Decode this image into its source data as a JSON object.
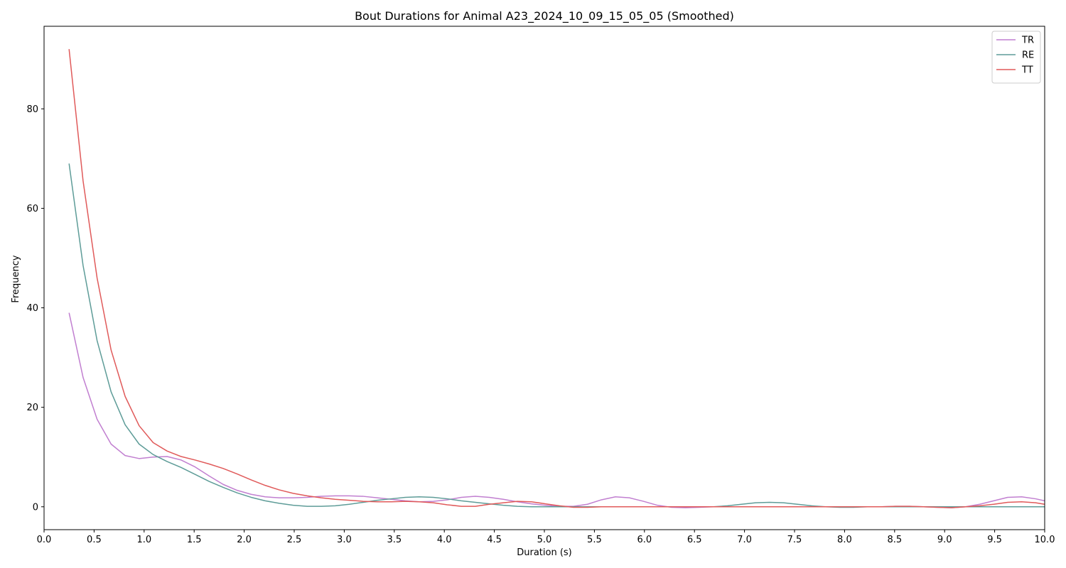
{
  "chart_data": {
    "type": "line",
    "title": "Bout Durations for Animal A23_2024_10_09_15_05_05 (Smoothed)",
    "xlabel": "Duration (s)",
    "ylabel": "Frequency",
    "xlim": [
      0,
      10
    ],
    "ylim": [
      -4.6,
      96.6
    ],
    "xticks": [
      0.0,
      0.5,
      1.0,
      1.5,
      2.0,
      2.5,
      3.0,
      3.5,
      4.0,
      4.5,
      5.0,
      5.5,
      6.0,
      6.5,
      7.0,
      7.5,
      8.0,
      8.5,
      9.0,
      9.5,
      10.0
    ],
    "xtick_labels": [
      "0.0",
      "0.5",
      "1.0",
      "1.5",
      "2.0",
      "2.5",
      "3.0",
      "3.5",
      "4.0",
      "4.5",
      "5.0",
      "5.5",
      "6.0",
      "6.5",
      "7.0",
      "7.5",
      "8.0",
      "8.5",
      "9.0",
      "9.5",
      "10.0"
    ],
    "yticks": [
      0,
      20,
      40,
      60,
      80
    ],
    "ytick_labels": [
      "0",
      "20",
      "40",
      "60",
      "80"
    ],
    "grid": false,
    "legend_position": "top-right",
    "series": [
      {
        "name": "TR",
        "color": "#c17fd0",
        "points": [
          [
            0.25,
            39
          ],
          [
            0.39,
            26
          ],
          [
            0.53,
            17.6
          ],
          [
            0.67,
            12.6
          ],
          [
            0.81,
            10.3
          ],
          [
            0.95,
            9.7
          ],
          [
            1.09,
            10
          ],
          [
            1.23,
            10.1
          ],
          [
            1.37,
            9.4
          ],
          [
            1.51,
            8
          ],
          [
            1.65,
            6.2
          ],
          [
            1.79,
            4.5
          ],
          [
            1.93,
            3.3
          ],
          [
            2.07,
            2.5
          ],
          [
            2.21,
            2
          ],
          [
            2.35,
            1.8
          ],
          [
            2.49,
            1.8
          ],
          [
            2.63,
            1.9
          ],
          [
            2.77,
            2.1
          ],
          [
            2.91,
            2.2
          ],
          [
            3.05,
            2.2
          ],
          [
            3.19,
            2.1
          ],
          [
            3.33,
            1.8
          ],
          [
            3.47,
            1.5
          ],
          [
            3.61,
            1.2
          ],
          [
            3.75,
            1
          ],
          [
            3.89,
            1.1
          ],
          [
            4.03,
            1.4
          ],
          [
            4.17,
            1.9
          ],
          [
            4.31,
            2.1
          ],
          [
            4.45,
            1.9
          ],
          [
            4.59,
            1.5
          ],
          [
            4.73,
            1
          ],
          [
            4.87,
            0.6
          ],
          [
            5.01,
            0.3
          ],
          [
            5.15,
            0.1
          ],
          [
            5.29,
            0.1
          ],
          [
            5.43,
            0.5
          ],
          [
            5.57,
            1.4
          ],
          [
            5.71,
            2
          ],
          [
            5.85,
            1.8
          ],
          [
            5.99,
            1.1
          ],
          [
            6.13,
            0.3
          ],
          [
            6.27,
            -0.1
          ],
          [
            6.41,
            -0.2
          ],
          [
            6.55,
            -0.1
          ],
          [
            6.69,
            0
          ],
          [
            6.83,
            0
          ],
          [
            6.97,
            0
          ],
          [
            7.11,
            0
          ],
          [
            7.25,
            0
          ],
          [
            7.39,
            0
          ],
          [
            7.53,
            0
          ],
          [
            7.67,
            0
          ],
          [
            7.81,
            0
          ],
          [
            7.95,
            0
          ],
          [
            8.09,
            0
          ],
          [
            8.23,
            0
          ],
          [
            8.37,
            0
          ],
          [
            8.51,
            0.1
          ],
          [
            8.65,
            0.1
          ],
          [
            8.79,
            0
          ],
          [
            8.93,
            -0.1
          ],
          [
            9.07,
            -0.2
          ],
          [
            9.21,
            0
          ],
          [
            9.35,
            0.5
          ],
          [
            9.49,
            1.2
          ],
          [
            9.63,
            1.9
          ],
          [
            9.77,
            2
          ],
          [
            9.91,
            1.6
          ],
          [
            10,
            1.2
          ]
        ]
      },
      {
        "name": "RE",
        "color": "#5e9c98",
        "points": [
          [
            0.25,
            69
          ],
          [
            0.39,
            48.5
          ],
          [
            0.53,
            33.4
          ],
          [
            0.67,
            23.1
          ],
          [
            0.81,
            16.5
          ],
          [
            0.95,
            12.6
          ],
          [
            1.09,
            10.5
          ],
          [
            1.23,
            9.1
          ],
          [
            1.37,
            7.9
          ],
          [
            1.51,
            6.5
          ],
          [
            1.65,
            5.1
          ],
          [
            1.79,
            3.9
          ],
          [
            1.93,
            2.8
          ],
          [
            2.07,
            1.9
          ],
          [
            2.21,
            1.2
          ],
          [
            2.35,
            0.7
          ],
          [
            2.49,
            0.3
          ],
          [
            2.63,
            0.1
          ],
          [
            2.77,
            0.1
          ],
          [
            2.91,
            0.2
          ],
          [
            3.05,
            0.5
          ],
          [
            3.19,
            0.9
          ],
          [
            3.33,
            1.3
          ],
          [
            3.47,
            1.6
          ],
          [
            3.61,
            1.9
          ],
          [
            3.75,
            2
          ],
          [
            3.89,
            1.9
          ],
          [
            4.03,
            1.6
          ],
          [
            4.17,
            1.2
          ],
          [
            4.31,
            0.9
          ],
          [
            4.45,
            0.6
          ],
          [
            4.59,
            0.3
          ],
          [
            4.73,
            0.1
          ],
          [
            4.87,
            0
          ],
          [
            5.01,
            0
          ],
          [
            5.15,
            0
          ],
          [
            5.29,
            0
          ],
          [
            5.43,
            0
          ],
          [
            5.57,
            0
          ],
          [
            5.71,
            0
          ],
          [
            5.85,
            0
          ],
          [
            5.99,
            0
          ],
          [
            6.13,
            0
          ],
          [
            6.27,
            0
          ],
          [
            6.41,
            0
          ],
          [
            6.55,
            0
          ],
          [
            6.69,
            0
          ],
          [
            6.83,
            0.2
          ],
          [
            6.97,
            0.5
          ],
          [
            7.11,
            0.8
          ],
          [
            7.25,
            0.9
          ],
          [
            7.39,
            0.8
          ],
          [
            7.53,
            0.5
          ],
          [
            7.67,
            0.2
          ],
          [
            7.81,
            0
          ],
          [
            7.95,
            -0.1
          ],
          [
            8.09,
            -0.1
          ],
          [
            8.23,
            0
          ],
          [
            8.37,
            0
          ],
          [
            8.51,
            0
          ],
          [
            8.65,
            0
          ],
          [
            8.79,
            0
          ],
          [
            8.93,
            0
          ],
          [
            9.07,
            0
          ],
          [
            9.21,
            0
          ],
          [
            9.35,
            0
          ],
          [
            9.49,
            0
          ],
          [
            9.63,
            0
          ],
          [
            9.77,
            0
          ],
          [
            9.91,
            0
          ],
          [
            10,
            0
          ]
        ]
      },
      {
        "name": "TT",
        "color": "#e05a5a",
        "points": [
          [
            0.25,
            92
          ],
          [
            0.39,
            65.5
          ],
          [
            0.53,
            46
          ],
          [
            0.67,
            31.5
          ],
          [
            0.81,
            22.2
          ],
          [
            0.95,
            16.3
          ],
          [
            1.09,
            12.9
          ],
          [
            1.23,
            11.2
          ],
          [
            1.37,
            10.1
          ],
          [
            1.51,
            9.4
          ],
          [
            1.65,
            8.6
          ],
          [
            1.79,
            7.7
          ],
          [
            1.93,
            6.6
          ],
          [
            2.07,
            5.4
          ],
          [
            2.21,
            4.3
          ],
          [
            2.35,
            3.4
          ],
          [
            2.49,
            2.7
          ],
          [
            2.63,
            2.2
          ],
          [
            2.77,
            1.8
          ],
          [
            2.91,
            1.5
          ],
          [
            3.05,
            1.3
          ],
          [
            3.19,
            1.1
          ],
          [
            3.33,
            1
          ],
          [
            3.47,
            1
          ],
          [
            3.61,
            1.1
          ],
          [
            3.75,
            1
          ],
          [
            3.89,
            0.8
          ],
          [
            4.03,
            0.4
          ],
          [
            4.17,
            0.1
          ],
          [
            4.31,
            0.1
          ],
          [
            4.45,
            0.5
          ],
          [
            4.59,
            0.8
          ],
          [
            4.73,
            1.1
          ],
          [
            4.87,
            1
          ],
          [
            5.01,
            0.6
          ],
          [
            5.15,
            0.2
          ],
          [
            5.29,
            -0.1
          ],
          [
            5.43,
            -0.1
          ],
          [
            5.57,
            0
          ],
          [
            5.71,
            0
          ],
          [
            5.85,
            0
          ],
          [
            5.99,
            0
          ],
          [
            6.13,
            0
          ],
          [
            6.27,
            0
          ],
          [
            6.41,
            0
          ],
          [
            6.55,
            0
          ],
          [
            6.69,
            0
          ],
          [
            6.83,
            0
          ],
          [
            6.97,
            0
          ],
          [
            7.11,
            0
          ],
          [
            7.25,
            0
          ],
          [
            7.39,
            0
          ],
          [
            7.53,
            0
          ],
          [
            7.67,
            0
          ],
          [
            7.81,
            0
          ],
          [
            7.95,
            0
          ],
          [
            8.09,
            0
          ],
          [
            8.23,
            0
          ],
          [
            8.37,
            0
          ],
          [
            8.51,
            0.1
          ],
          [
            8.65,
            0.1
          ],
          [
            8.79,
            0
          ],
          [
            8.93,
            -0.1
          ],
          [
            9.07,
            -0.2
          ],
          [
            9.21,
            0
          ],
          [
            9.35,
            0.2
          ],
          [
            9.49,
            0.5
          ],
          [
            9.63,
            0.9
          ],
          [
            9.77,
            1
          ],
          [
            9.91,
            0.8
          ],
          [
            10,
            0.5
          ]
        ]
      }
    ]
  }
}
